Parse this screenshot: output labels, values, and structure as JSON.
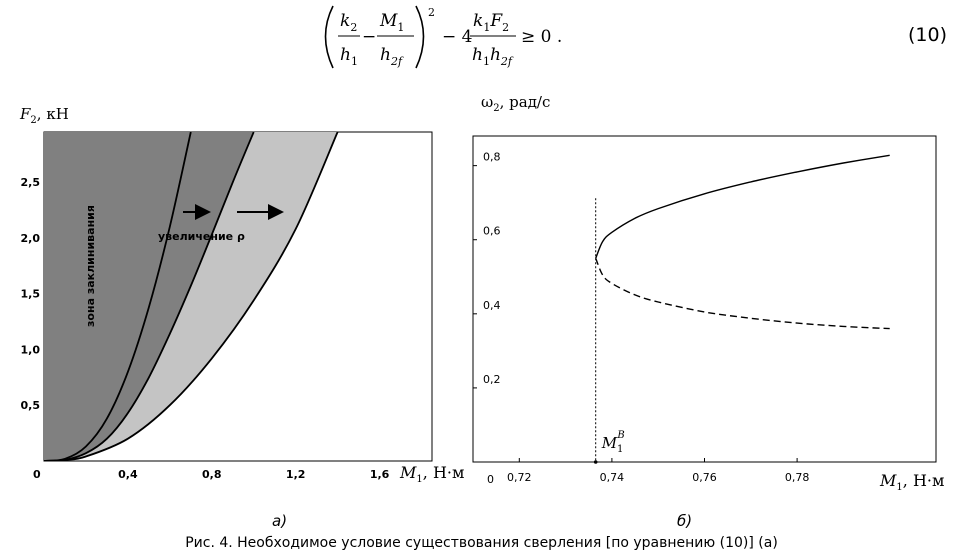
{
  "equation": {
    "frac1_num": "k",
    "frac1_num_sub": "2",
    "frac1_den": "h",
    "frac1_den_sub": "1",
    "minus": "−",
    "frac2_num": "M",
    "frac2_num_sub": "1",
    "frac2_den": "h",
    "frac2_den_sub": "2f",
    "power": "2",
    "coef": "− 4",
    "frac3_num_a": "k",
    "frac3_num_a_sub": "1",
    "frac3_num_b": "F",
    "frac3_num_b_sub": "2",
    "frac3_den_a": "h",
    "frac3_den_a_sub": "1",
    "frac3_den_b": "h",
    "frac3_den_b_sub": "2f",
    "rel": "≥ 0 .",
    "number": "(10)"
  },
  "panel_a_label": "а)",
  "panel_b_label": "б)",
  "caption": "Рис.  4. Необходимое условие существования сверления [по уравнению (10)] (а)",
  "chart_data": [
    {
      "type": "area",
      "ylabel_var": "F",
      "ylabel_sub": "2",
      "ylabel_unit": ", кН",
      "xlabel_var": "M",
      "xlabel_sub": "1",
      "xlabel_unit": ", Н·м",
      "origin_label": "0",
      "xlim": [
        0,
        1.85
      ],
      "ylim": [
        0,
        2.95
      ],
      "xticks": [
        0.4,
        0.8,
        1.2,
        1.6
      ],
      "xtick_labels": [
        "0,4",
        "0,8",
        "1,2",
        "1,6"
      ],
      "yticks": [
        0.5,
        1.0,
        1.5,
        2.0,
        2.5
      ],
      "ytick_labels": [
        "0,5",
        "1,0",
        "1,5",
        "2,0",
        "2,5"
      ],
      "annotation_zone": "зона заклинивания",
      "annotation_arrow": "увеличение ρ",
      "colors": {
        "zone1": "#808080",
        "zone2": "#c4c4c4",
        "line": "#000000"
      },
      "series": [
        {
          "points": [
            [
              0,
              0
            ],
            [
              0.1,
              0.02
            ],
            [
              0.2,
              0.13
            ],
            [
              0.3,
              0.38
            ],
            [
              0.4,
              0.8
            ],
            [
              0.5,
              1.38
            ],
            [
              0.6,
              2.1
            ],
            [
              0.7,
              2.95
            ]
          ]
        },
        {
          "points": [
            [
              0,
              0
            ],
            [
              0.1,
              0.01
            ],
            [
              0.2,
              0.07
            ],
            [
              0.3,
              0.2
            ],
            [
              0.4,
              0.43
            ],
            [
              0.5,
              0.75
            ],
            [
              0.6,
              1.14
            ],
            [
              0.7,
              1.57
            ],
            [
              0.8,
              2.03
            ],
            [
              0.9,
              2.5
            ],
            [
              1.0,
              2.95
            ]
          ]
        },
        {
          "points": [
            [
              0,
              0
            ],
            [
              0.1,
              0.01
            ],
            [
              0.2,
              0.04
            ],
            [
              0.4,
              0.2
            ],
            [
              0.6,
              0.5
            ],
            [
              0.8,
              0.92
            ],
            [
              1.0,
              1.44
            ],
            [
              1.2,
              2.08
            ],
            [
              1.4,
              2.95
            ]
          ]
        }
      ]
    },
    {
      "type": "line",
      "ylabel": "ω",
      "ylabel_sub": "2",
      "ylabel_unit": ", рад/с",
      "xlabel_var": "M",
      "xlabel_sub": "1",
      "xlabel_unit": ", Н·м",
      "origin_label": "0",
      "xlim": [
        0.71,
        0.81
      ],
      "ylim": [
        0,
        0.88
      ],
      "xticks": [
        0.72,
        0.74,
        0.76,
        0.78
      ],
      "xtick_labels": [
        "0,72",
        "0,74",
        "0,76",
        "0,78"
      ],
      "yticks": [
        0.2,
        0.4,
        0.6,
        0.8
      ],
      "ytick_labels": [
        "0,2",
        "0,4",
        "0,6",
        "0,8"
      ],
      "marker_label_var": "M",
      "marker_label_sub": "1",
      "marker_label_sup": "B",
      "marker_x": 0.7365,
      "series": [
        {
          "style": "solid",
          "points": [
            [
              0.7365,
              0.55
            ],
            [
              0.738,
              0.595
            ],
            [
              0.74,
              0.62
            ],
            [
              0.745,
              0.658
            ],
            [
              0.75,
              0.684
            ],
            [
              0.76,
              0.724
            ],
            [
              0.77,
              0.756
            ],
            [
              0.78,
              0.783
            ],
            [
              0.79,
              0.807
            ],
            [
              0.8,
              0.828
            ]
          ]
        },
        {
          "style": "dashed",
          "points": [
            [
              0.7365,
              0.55
            ],
            [
              0.738,
              0.505
            ],
            [
              0.74,
              0.482
            ],
            [
              0.745,
              0.451
            ],
            [
              0.75,
              0.432
            ],
            [
              0.76,
              0.405
            ],
            [
              0.77,
              0.388
            ],
            [
              0.78,
              0.375
            ],
            [
              0.79,
              0.366
            ],
            [
              0.8,
              0.36
            ]
          ]
        }
      ]
    }
  ]
}
